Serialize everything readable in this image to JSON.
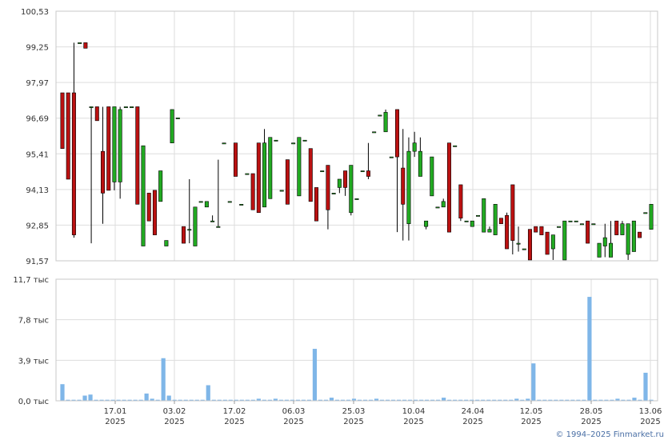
{
  "chart_data": [
    {
      "type": "candlestick",
      "title": "",
      "y_ticks": [
        "100,53",
        "99,25",
        "97,97",
        "96,69",
        "95,41",
        "94,13",
        "92,85",
        "91,57"
      ],
      "ylim": [
        91.57,
        100.53
      ],
      "x_ticks": [
        {
          "day": "17.01",
          "year": "2025"
        },
        {
          "day": "03.02",
          "year": "2025"
        },
        {
          "day": "17.02",
          "year": "2025"
        },
        {
          "day": "06.03",
          "year": "2025"
        },
        {
          "day": "25.03",
          "year": "2025"
        },
        {
          "day": "10.04",
          "year": "2025"
        },
        {
          "day": "24.04",
          "year": "2025"
        },
        {
          "day": "12.05",
          "year": "2025"
        },
        {
          "day": "28.05",
          "year": "2025"
        },
        {
          "day": "13.06",
          "year": "2025"
        }
      ],
      "up_color": "#22aa22",
      "down_color": "#bb1111",
      "grid": true,
      "candles": [
        [
          97.6,
          95.6,
          97.6,
          95.6
        ],
        [
          97.6,
          94.5,
          97.6,
          94.5
        ],
        [
          99.4,
          92.4,
          97.6,
          92.5
        ],
        [
          99.4,
          99.4,
          99.4,
          99.4
        ],
        [
          99.4,
          99.2,
          99.4,
          99.2
        ],
        [
          97.1,
          92.2,
          97.1,
          97.1
        ],
        [
          97.1,
          96.6,
          97.1,
          96.6
        ],
        [
          97.1,
          92.9,
          95.5,
          94.0
        ],
        [
          97.1,
          94.1,
          97.1,
          94.1
        ],
        [
          97.1,
          94.1,
          94.4,
          97.1
        ],
        [
          97.1,
          93.8,
          94.4,
          97.0
        ],
        [
          97.1,
          97.1,
          97.1,
          97.1
        ],
        [
          97.1,
          97.1,
          97.1,
          97.1
        ],
        [
          97.1,
          93.6,
          97.1,
          93.6
        ],
        [
          95.7,
          92.1,
          92.1,
          95.7
        ],
        [
          94.0,
          93.0,
          94.0,
          93.0
        ],
        [
          94.1,
          92.5,
          94.1,
          92.5
        ],
        [
          94.8,
          93.7,
          93.7,
          94.8
        ],
        [
          92.3,
          92.1,
          92.1,
          92.3
        ],
        [
          97.0,
          95.8,
          95.8,
          97.0
        ],
        [
          96.7,
          96.7,
          96.7,
          96.7
        ],
        [
          92.8,
          92.2,
          92.8,
          92.2
        ],
        [
          94.5,
          92.2,
          92.7,
          92.7
        ],
        [
          93.5,
          92.1,
          92.1,
          93.5
        ],
        [
          93.7,
          93.7,
          93.7,
          93.7
        ],
        [
          93.7,
          93.5,
          93.5,
          93.7
        ],
        [
          93.2,
          93.0,
          93.0,
          93.0
        ],
        [
          95.2,
          92.8,
          92.8,
          92.8
        ],
        [
          95.8,
          95.8,
          95.8,
          95.8
        ],
        [
          93.7,
          93.7,
          93.7,
          93.7
        ],
        [
          95.8,
          94.6,
          95.8,
          94.6
        ],
        [
          93.6,
          93.6,
          93.6,
          93.6
        ],
        [
          94.7,
          94.7,
          94.7,
          94.7
        ],
        [
          94.7,
          93.4,
          94.7,
          93.4
        ],
        [
          95.8,
          93.3,
          95.8,
          93.3
        ],
        [
          96.3,
          93.5,
          93.5,
          95.8
        ],
        [
          96.0,
          93.8,
          93.8,
          96.0
        ],
        [
          95.9,
          95.9,
          95.9,
          95.9
        ],
        [
          94.1,
          94.1,
          94.1,
          94.1
        ],
        [
          95.2,
          93.6,
          95.2,
          93.6
        ],
        [
          95.8,
          95.8,
          95.8,
          95.8
        ],
        [
          96.0,
          93.9,
          93.9,
          96.0
        ],
        [
          95.9,
          95.9,
          95.9,
          95.9
        ],
        [
          95.6,
          93.7,
          95.6,
          93.7
        ],
        [
          94.2,
          93.0,
          94.2,
          93.0
        ],
        [
          94.8,
          94.8,
          94.8,
          94.8
        ],
        [
          95.0,
          92.7,
          95.0,
          93.4
        ],
        [
          94.0,
          94.0,
          94.0,
          94.0
        ],
        [
          94.0,
          94.2,
          94.2,
          94.5
        ],
        [
          94.8,
          93.9,
          94.8,
          94.2
        ],
        [
          95.0,
          93.2,
          93.3,
          95.0
        ],
        [
          93.8,
          93.8,
          93.8,
          93.8
        ],
        [
          94.8,
          94.8,
          94.8,
          94.8
        ],
        [
          95.8,
          94.5,
          94.8,
          94.6
        ],
        [
          96.2,
          96.2,
          96.2,
          96.2
        ],
        [
          96.8,
          96.8,
          96.8,
          96.8
        ],
        [
          97.0,
          96.2,
          96.2,
          96.9
        ],
        [
          95.3,
          95.3,
          95.3,
          95.3
        ],
        [
          97.0,
          92.6,
          97.0,
          95.3
        ],
        [
          96.3,
          92.3,
          94.9,
          93.6
        ],
        [
          96.0,
          92.3,
          92.9,
          95.5
        ],
        [
          96.2,
          95.3,
          95.5,
          95.8
        ],
        [
          96.0,
          94.6,
          94.6,
          95.5
        ],
        [
          93.0,
          92.7,
          92.8,
          93.0
        ],
        [
          95.3,
          93.9,
          93.9,
          95.3
        ],
        [
          93.5,
          93.5,
          93.5,
          93.5
        ],
        [
          93.8,
          93.5,
          93.5,
          93.7
        ],
        [
          95.8,
          92.6,
          95.8,
          92.6
        ],
        [
          95.7,
          95.7,
          95.7,
          95.7
        ],
        [
          94.3,
          93.0,
          94.3,
          93.1
        ],
        [
          93.0,
          93.0,
          93.0,
          93.0
        ],
        [
          93.0,
          92.8,
          92.8,
          93.0
        ],
        [
          93.2,
          93.2,
          93.2,
          93.2
        ],
        [
          93.8,
          92.6,
          92.6,
          93.8
        ],
        [
          92.8,
          92.7,
          92.6,
          92.7
        ],
        [
          93.6,
          92.5,
          92.5,
          93.6
        ],
        [
          93.1,
          92.9,
          93.1,
          92.9
        ],
        [
          93.3,
          92.0,
          93.2,
          92.0
        ],
        [
          94.3,
          91.8,
          94.3,
          92.3
        ],
        [
          92.8,
          91.9,
          92.2,
          92.2
        ],
        [
          92.0,
          92.0,
          92.0,
          92.0
        ],
        [
          92.7,
          91.6,
          92.7,
          91.6
        ],
        [
          92.8,
          92.6,
          92.8,
          92.6
        ],
        [
          92.8,
          92.5,
          92.8,
          92.5
        ],
        [
          92.6,
          91.8,
          92.6,
          91.8
        ],
        [
          92.5,
          91.6,
          92.0,
          92.5
        ],
        [
          92.8,
          92.8,
          92.8,
          92.8
        ],
        [
          93.0,
          91.6,
          91.6,
          93.0
        ],
        [
          93.0,
          93.0,
          93.0,
          93.0
        ],
        [
          93.0,
          93.0,
          93.0,
          93.0
        ],
        [
          92.9,
          92.9,
          92.9,
          92.9
        ],
        [
          93.0,
          92.2,
          93.0,
          92.2
        ],
        [
          92.9,
          92.9,
          92.9,
          92.9
        ],
        [
          92.2,
          91.7,
          91.7,
          92.2
        ],
        [
          92.9,
          91.7,
          92.1,
          92.4
        ],
        [
          93.0,
          91.7,
          91.7,
          92.2
        ],
        [
          93.0,
          92.5,
          93.0,
          92.5
        ],
        [
          93.0,
          92.5,
          92.5,
          92.9
        ],
        [
          92.9,
          91.6,
          91.8,
          92.9
        ],
        [
          93.0,
          91.9,
          91.9,
          93.0
        ],
        [
          92.6,
          92.4,
          92.6,
          92.4
        ],
        [
          93.3,
          93.3,
          93.3,
          93.3
        ],
        [
          93.6,
          92.7,
          92.7,
          93.6
        ]
      ]
    },
    {
      "type": "bar",
      "title": "",
      "y_ticks": [
        "11,7 тыс",
        "7,8 тыс",
        "3,9 тыс",
        "0,0 тыс"
      ],
      "ylim": [
        0,
        11.7
      ],
      "unit": "тыс",
      "bar_color": "#7fb6e8",
      "values": [
        1.6,
        0.1,
        0.1,
        0.1,
        0.5,
        0.6,
        0.1,
        0.1,
        0.1,
        0.1,
        0.1,
        0.1,
        0.1,
        0.1,
        0.1,
        0.7,
        0.2,
        0.1,
        4.1,
        0.5,
        0.1,
        0.1,
        0.1,
        0.1,
        0.1,
        0.1,
        1.5,
        0.1,
        0.1,
        0.1,
        0.1,
        0.1,
        0.1,
        0.1,
        0.1,
        0.2,
        0.1,
        0.1,
        0.2,
        0.1,
        0.1,
        0.1,
        0.1,
        0.1,
        0.1,
        5.0,
        0.1,
        0.1,
        0.3,
        0.1,
        0.1,
        0.1,
        0.2,
        0.1,
        0.1,
        0.1,
        0.2,
        0.1,
        0.1,
        0.1,
        0.1,
        0.1,
        0.1,
        0.1,
        0.1,
        0.1,
        0.1,
        0.1,
        0.3,
        0.1,
        0.1,
        0.1,
        0.1,
        0.1,
        0.1,
        0.1,
        0.1,
        0.1,
        0.1,
        0.1,
        0.1,
        0.2,
        0.1,
        0.2,
        3.6,
        0.1,
        0.1,
        0.1,
        0.1,
        0.1,
        0.1,
        0.1,
        0.1,
        0.1,
        10.0,
        0.1,
        0.1,
        0.1,
        0.1,
        0.2,
        0.1,
        0.1,
        0.3,
        0.1,
        2.7,
        0.1
      ]
    }
  ],
  "copyright": "© 1994–2025 Finmarket.ru"
}
